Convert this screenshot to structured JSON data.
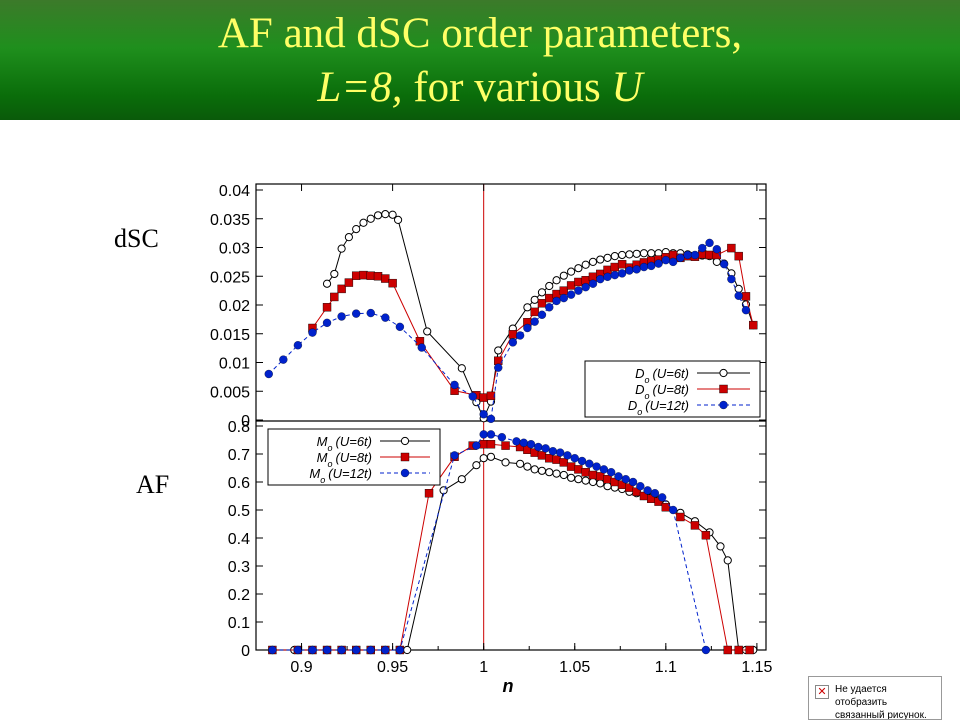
{
  "slide": {
    "title_line1": "AF and dSC order parameters,",
    "title_line2_a": "L=8,",
    "title_line2_b": " for various ",
    "title_line2_c": "U",
    "label_top": "dSC",
    "label_bottom": "AF"
  },
  "broken_image": {
    "line1": "Не удается отобразить",
    "line2": "связанный рисунок."
  },
  "chart_data": [
    {
      "type": "line",
      "panel": "top",
      "xlim": [
        0.875,
        1.155
      ],
      "ylim": [
        0,
        0.04
      ],
      "yticks": [
        "0",
        "0.005",
        "0.01",
        "0.015",
        "0.02",
        "0.025",
        "0.03",
        "0.035",
        "0.04"
      ],
      "legend_position": "bottom-right",
      "series": [
        {
          "name": "Do (U=6t)",
          "label_main": "D",
          "label_sub": "o",
          "label_paren": "(U=6t)",
          "color": "#000000",
          "marker": "open-circle",
          "dash": "solid",
          "x": [
            0.914,
            0.918,
            0.922,
            0.926,
            0.93,
            0.934,
            0.938,
            0.942,
            0.946,
            0.95,
            0.953,
            0.969,
            0.988,
            0.996,
            1.0,
            1.004,
            1.008,
            1.016,
            1.024,
            1.028,
            1.032,
            1.036,
            1.04,
            1.044,
            1.048,
            1.052,
            1.056,
            1.06,
            1.064,
            1.068,
            1.072,
            1.076,
            1.08,
            1.084,
            1.088,
            1.092,
            1.096,
            1.1,
            1.104,
            1.108,
            1.112,
            1.116,
            1.12,
            1.124,
            1.128,
            1.132,
            1.136,
            1.14,
            1.144,
            1.148
          ],
          "y": [
            0.0237,
            0.0254,
            0.0298,
            0.0318,
            0.0332,
            0.0343,
            0.035,
            0.0356,
            0.0358,
            0.0357,
            0.0348,
            0.0154,
            0.009,
            0.0031,
            0.0003,
            0.0032,
            0.0121,
            0.0159,
            0.0196,
            0.0209,
            0.0222,
            0.0233,
            0.0243,
            0.0251,
            0.0258,
            0.0264,
            0.027,
            0.0275,
            0.0279,
            0.0282,
            0.0285,
            0.0287,
            0.0288,
            0.0289,
            0.029,
            0.029,
            0.029,
            0.0292,
            0.029,
            0.029,
            0.0288,
            0.0285,
            0.0286,
            0.0285,
            0.0275,
            0.0272,
            0.0255,
            0.0228,
            0.0201,
            0.0165
          ]
        },
        {
          "name": "Do (U=8t)",
          "label_main": "D",
          "label_sub": "o",
          "label_paren": "(U=8t)",
          "color": "#cc0000",
          "marker": "filled-square",
          "dash": "solid",
          "x": [
            0.906,
            0.914,
            0.918,
            0.922,
            0.926,
            0.93,
            0.934,
            0.938,
            0.942,
            0.946,
            0.95,
            0.965,
            0.984,
            0.996,
            1.0,
            1.004,
            1.008,
            1.016,
            1.024,
            1.028,
            1.032,
            1.036,
            1.04,
            1.044,
            1.048,
            1.052,
            1.056,
            1.06,
            1.064,
            1.068,
            1.072,
            1.076,
            1.08,
            1.084,
            1.088,
            1.092,
            1.096,
            1.1,
            1.104,
            1.108,
            1.112,
            1.116,
            1.12,
            1.124,
            1.128,
            1.136,
            1.14,
            1.144,
            1.148
          ],
          "y": [
            0.016,
            0.0196,
            0.0214,
            0.0228,
            0.0239,
            0.0251,
            0.0252,
            0.0251,
            0.025,
            0.0246,
            0.0238,
            0.0137,
            0.0051,
            0.0043,
            0.0039,
            0.0042,
            0.0103,
            0.0149,
            0.017,
            0.0188,
            0.0203,
            0.0212,
            0.0219,
            0.0225,
            0.0234,
            0.024,
            0.0243,
            0.0249,
            0.0254,
            0.0261,
            0.0266,
            0.0271,
            0.0265,
            0.027,
            0.0274,
            0.0277,
            0.0279,
            0.0283,
            0.0287,
            0.0282,
            0.0285,
            0.0284,
            0.0288,
            0.0287,
            0.0287,
            0.0299,
            0.0285,
            0.0215,
            0.0165
          ]
        },
        {
          "name": "Do (U=12t)",
          "label_main": "D",
          "label_sub": "o",
          "label_paren": "(U=12t)",
          "color": "#0022cc",
          "marker": "filled-circle",
          "dash": "dashed",
          "x": [
            0.882,
            0.89,
            0.898,
            0.906,
            0.914,
            0.922,
            0.93,
            0.938,
            0.946,
            0.954,
            0.966,
            0.984,
            0.994,
            1.0,
            1.004,
            1.008,
            1.016,
            1.02,
            1.024,
            1.028,
            1.032,
            1.036,
            1.04,
            1.044,
            1.048,
            1.052,
            1.056,
            1.06,
            1.064,
            1.068,
            1.072,
            1.076,
            1.08,
            1.084,
            1.088,
            1.092,
            1.096,
            1.1,
            1.104,
            1.108,
            1.112,
            1.116,
            1.12,
            1.124,
            1.128,
            1.132,
            1.136,
            1.14,
            1.144
          ],
          "y": [
            0.008,
            0.0105,
            0.013,
            0.0152,
            0.0169,
            0.018,
            0.0185,
            0.0186,
            0.0178,
            0.0162,
            0.0126,
            0.0061,
            0.0041,
            0.001,
            0.0002,
            0.0091,
            0.0135,
            0.0147,
            0.016,
            0.0171,
            0.0183,
            0.0196,
            0.0207,
            0.0212,
            0.0218,
            0.0225,
            0.0231,
            0.0237,
            0.0245,
            0.0249,
            0.0252,
            0.0255,
            0.026,
            0.0262,
            0.0266,
            0.0268,
            0.0272,
            0.0278,
            0.0275,
            0.0282,
            0.0287,
            0.0287,
            0.0299,
            0.0308,
            0.0297,
            0.0271,
            0.0245,
            0.0216,
            0.0191
          ]
        }
      ]
    },
    {
      "type": "line",
      "panel": "bottom",
      "xlim": [
        0.875,
        1.155
      ],
      "ylim": [
        0,
        0.8
      ],
      "xticks": [
        "0.9",
        "0.95",
        "1",
        "1.05",
        "1.1",
        "1.15"
      ],
      "yticks": [
        "0",
        "0.1",
        "0.2",
        "0.3",
        "0.4",
        "0.5",
        "0.6",
        "0.7",
        "0.8"
      ],
      "xlabel": "n",
      "legend_position": "top-left",
      "series": [
        {
          "name": "Mo (U=6t)",
          "label_main": "M",
          "label_sub": "o",
          "label_paren": "(U=6t)",
          "color": "#000000",
          "marker": "open-circle",
          "dash": "solid",
          "x": [
            0.884,
            0.896,
            0.906,
            0.914,
            0.922,
            0.93,
            0.938,
            0.946,
            0.954,
            0.958,
            0.978,
            0.988,
            0.996,
            1.0,
            1.004,
            1.012,
            1.02,
            1.024,
            1.028,
            1.032,
            1.036,
            1.04,
            1.044,
            1.048,
            1.052,
            1.056,
            1.06,
            1.064,
            1.068,
            1.072,
            1.076,
            1.08,
            1.084,
            1.088,
            1.092,
            1.096,
            1.1,
            1.108,
            1.116,
            1.124,
            1.13,
            1.134,
            1.14,
            1.144,
            1.148
          ],
          "y": [
            0,
            0,
            0,
            0,
            0,
            0,
            0,
            0,
            0,
            0,
            0.57,
            0.61,
            0.66,
            0.685,
            0.69,
            0.67,
            0.665,
            0.655,
            0.645,
            0.64,
            0.635,
            0.63,
            0.625,
            0.615,
            0.61,
            0.605,
            0.6,
            0.595,
            0.585,
            0.58,
            0.575,
            0.565,
            0.56,
            0.55,
            0.545,
            0.535,
            0.52,
            0.49,
            0.46,
            0.42,
            0.37,
            0.32,
            0,
            0,
            0
          ]
        },
        {
          "name": "Mo (U=8t)",
          "label_main": "M",
          "label_sub": "o",
          "label_paren": "(U=8t)",
          "color": "#cc0000",
          "marker": "filled-square",
          "dash": "solid",
          "x": [
            0.884,
            0.898,
            0.906,
            0.914,
            0.922,
            0.93,
            0.938,
            0.946,
            0.954,
            0.97,
            0.984,
            0.994,
            1.0,
            1.004,
            1.012,
            1.02,
            1.024,
            1.028,
            1.032,
            1.036,
            1.04,
            1.044,
            1.048,
            1.052,
            1.056,
            1.06,
            1.064,
            1.068,
            1.072,
            1.076,
            1.08,
            1.084,
            1.088,
            1.092,
            1.096,
            1.1,
            1.108,
            1.116,
            1.122,
            1.134,
            1.14,
            1.146
          ],
          "y": [
            0,
            0,
            0,
            0,
            0,
            0,
            0,
            0,
            0,
            0.56,
            0.69,
            0.73,
            0.735,
            0.735,
            0.73,
            0.725,
            0.715,
            0.705,
            0.695,
            0.685,
            0.68,
            0.67,
            0.655,
            0.645,
            0.635,
            0.625,
            0.62,
            0.61,
            0.6,
            0.59,
            0.58,
            0.565,
            0.55,
            0.54,
            0.53,
            0.51,
            0.475,
            0.445,
            0.41,
            0,
            0,
            0
          ]
        },
        {
          "name": "Mo (U=12t)",
          "label_main": "M",
          "label_sub": "o",
          "label_paren": "(U=12t)",
          "color": "#0022cc",
          "marker": "filled-circle",
          "dash": "dashed",
          "x": [
            0.884,
            0.898,
            0.906,
            0.914,
            0.922,
            0.93,
            0.938,
            0.946,
            0.954,
            0.984,
            0.996,
            1.0,
            1.004,
            1.01,
            1.018,
            1.022,
            1.026,
            1.03,
            1.034,
            1.038,
            1.042,
            1.046,
            1.05,
            1.054,
            1.058,
            1.062,
            1.066,
            1.07,
            1.074,
            1.078,
            1.082,
            1.086,
            1.09,
            1.094,
            1.098,
            1.104,
            1.122
          ],
          "y": [
            0,
            0,
            0,
            0,
            0,
            0,
            0,
            0,
            0,
            0.695,
            0.73,
            0.77,
            0.77,
            0.76,
            0.745,
            0.74,
            0.735,
            0.725,
            0.72,
            0.71,
            0.705,
            0.695,
            0.685,
            0.675,
            0.665,
            0.655,
            0.645,
            0.635,
            0.62,
            0.61,
            0.6,
            0.585,
            0.57,
            0.56,
            0.545,
            0.5,
            0
          ]
        }
      ]
    }
  ]
}
